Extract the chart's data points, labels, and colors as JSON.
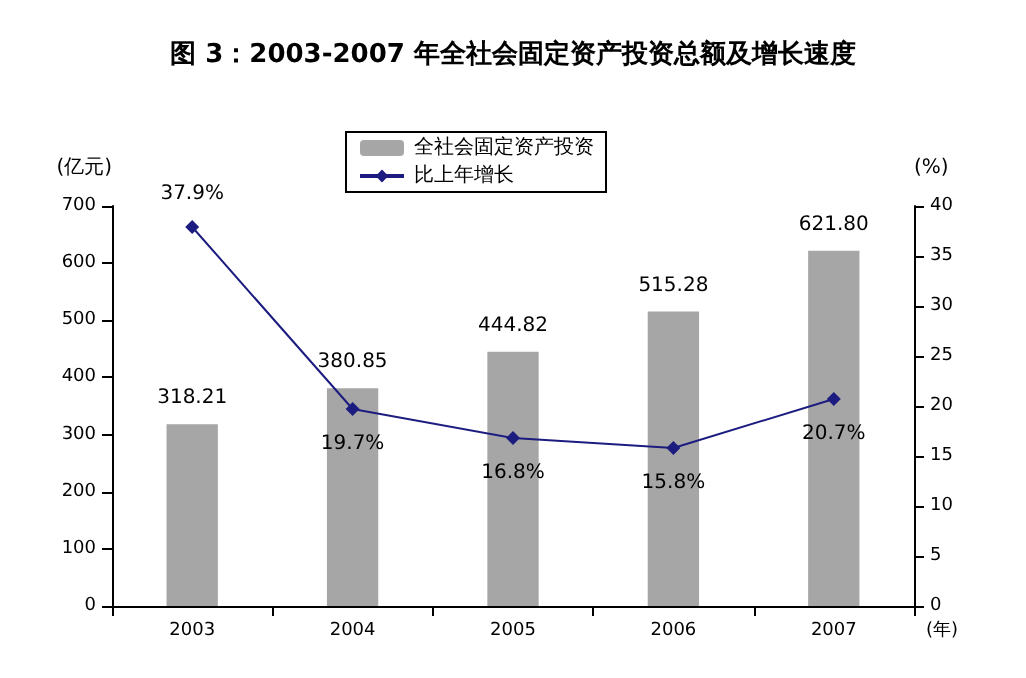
{
  "chart_data": {
    "type": "bar",
    "title": "图 3：2003-2007 年全社会固定资产投资总额及增长速度",
    "xlabel": "(年)",
    "ylabel": "(亿元)",
    "y2label": "(%)",
    "categories": [
      "2003",
      "2004",
      "2005",
      "2006",
      "2007"
    ],
    "series": [
      {
        "name": "全社会固定资产投资",
        "color": "#a6a6a6",
        "values": [
          318.21,
          380.85,
          444.82,
          515.28,
          621.8
        ],
        "value_labels": [
          "318.21",
          "380.85",
          "444.82",
          "515.28",
          "621.80"
        ]
      },
      {
        "name": "比上年增长",
        "type": "line",
        "axis": "y2",
        "color": "#1c1c80",
        "values": [
          37.9,
          19.7,
          16.8,
          15.8,
          20.7
        ],
        "value_labels": [
          "37.9%",
          "19.7%",
          "16.8%",
          "15.8%",
          "20.7%"
        ]
      }
    ],
    "ylim": [
      0,
      700
    ],
    "yticks": [
      0,
      100,
      200,
      300,
      400,
      500,
      600,
      700
    ],
    "y2lim": [
      0,
      40
    ],
    "y2ticks": [
      0,
      5,
      10,
      15,
      20,
      25,
      30,
      35,
      40
    ],
    "legend": "top",
    "marker": "diamond",
    "grid": false
  }
}
